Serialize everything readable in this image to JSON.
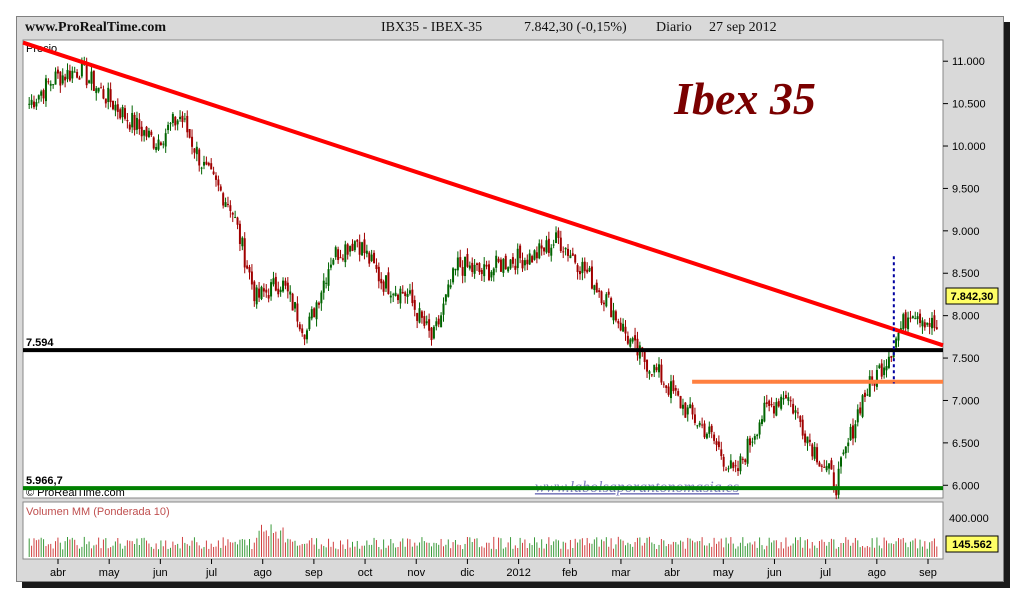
{
  "header": {
    "site": "www.ProRealTime.com",
    "instrument": "IBX35 - IBEX-35",
    "quote": "7.842,30 (-0,15%)",
    "period": "Diario",
    "date": "27 sep 2012"
  },
  "chart_data": [
    {
      "type": "candlestick",
      "panel": "price",
      "panel_label": "Precio",
      "title": "Ibex 35",
      "watermark": "www.labolsaporantonomasia.es",
      "copyright": "© ProRealTime.com",
      "ylim": [
        5850,
        11250
      ],
      "yticks": [
        6000,
        6500,
        7000,
        7500,
        8000,
        8500,
        9000,
        9500,
        10000,
        10500,
        11000
      ],
      "ytick_labels": [
        "6.000",
        "6.500",
        "7.000",
        "7.500",
        "8.000",
        "8.500",
        "9.000",
        "9.500",
        "10.000",
        "10.500",
        "11.000"
      ],
      "last_value_label": "7.842,30",
      "xticks": [
        "abr",
        "may",
        "jun",
        "jul",
        "ago",
        "sep",
        "oct",
        "nov",
        "dic",
        "2012",
        "feb",
        "mar",
        "abr",
        "may",
        "jun",
        "jul",
        "ago",
        "sep"
      ],
      "close_series": [
        {
          "month": "abr",
          "value": 10500
        },
        {
          "month": "abr",
          "value": 10800
        },
        {
          "month": "may",
          "value": 10900
        },
        {
          "month": "may",
          "value": 10600
        },
        {
          "month": "jun",
          "value": 10300
        },
        {
          "month": "jun",
          "value": 10050
        },
        {
          "month": "jul",
          "value": 10350
        },
        {
          "month": "jul",
          "value": 9700
        },
        {
          "month": "ago",
          "value": 9300
        },
        {
          "month": "ago",
          "value": 8200
        },
        {
          "month": "sep",
          "value": 8400
        },
        {
          "month": "sep",
          "value": 7800
        },
        {
          "month": "oct",
          "value": 8700
        },
        {
          "month": "oct",
          "value": 8900
        },
        {
          "month": "nov",
          "value": 8400
        },
        {
          "month": "nov",
          "value": 8250
        },
        {
          "month": "dic",
          "value": 7700
        },
        {
          "month": "dic",
          "value": 8600
        },
        {
          "month": "2012",
          "value": 8500
        },
        {
          "month": "2012",
          "value": 8650
        },
        {
          "month": "feb",
          "value": 8700
        },
        {
          "month": "feb",
          "value": 8900
        },
        {
          "month": "mar",
          "value": 8550
        },
        {
          "month": "mar",
          "value": 8150
        },
        {
          "month": "abr",
          "value": 7600
        },
        {
          "month": "abr",
          "value": 7300
        },
        {
          "month": "may",
          "value": 6900
        },
        {
          "month": "may",
          "value": 6600
        },
        {
          "month": "jun",
          "value": 6100
        },
        {
          "month": "jun",
          "value": 6800
        },
        {
          "month": "jul",
          "value": 7100
        },
        {
          "month": "jul",
          "value": 6500
        },
        {
          "month": "ago",
          "value": 6000
        },
        {
          "month": "ago",
          "value": 7000
        },
        {
          "month": "sep",
          "value": 7500
        },
        {
          "month": "sep",
          "value": 8100
        },
        {
          "month": "sep",
          "value": 7842
        }
      ],
      "annotations": [
        {
          "name": "support-7594",
          "type": "horizontal-line",
          "value": 7594,
          "label": "7.594",
          "color": "#000000"
        },
        {
          "name": "support-5966",
          "type": "horizontal-line",
          "value": 5966.7,
          "label": "5.966,7",
          "color": "#008000"
        },
        {
          "name": "resistance-orange",
          "type": "horizontal-segment",
          "value": 7220,
          "from_month": "abr",
          "color": "#ff8040"
        },
        {
          "name": "downtrend-line",
          "type": "trend-line",
          "from_value": 11220,
          "to_value": 7650,
          "color": "#ff0000"
        },
        {
          "name": "breakout-marker",
          "type": "vertical-dotted",
          "month": "ago",
          "from_value": 7200,
          "to_value": 8700,
          "color": "#0000a0"
        }
      ]
    },
    {
      "type": "bar",
      "panel": "volume",
      "title": "Volumen MM (Ponderada 10)",
      "yticks": [
        400000
      ],
      "ytick_labels": [
        "400.000"
      ],
      "last_value_label": "145.562",
      "ylim": [
        0,
        560000
      ],
      "series": [
        {
          "name": "Volumen MM (Ponderada 10)",
          "approx_level": 150000,
          "peak_month": "ago",
          "peak_value": 400000
        }
      ]
    }
  ],
  "colors": {
    "up": "#006400",
    "down": "#a00000",
    "title": "#7a0000",
    "watermark": "#7f7fbf",
    "panel_bg": "#ffffff",
    "frame_bg": "#d9d9d9"
  }
}
